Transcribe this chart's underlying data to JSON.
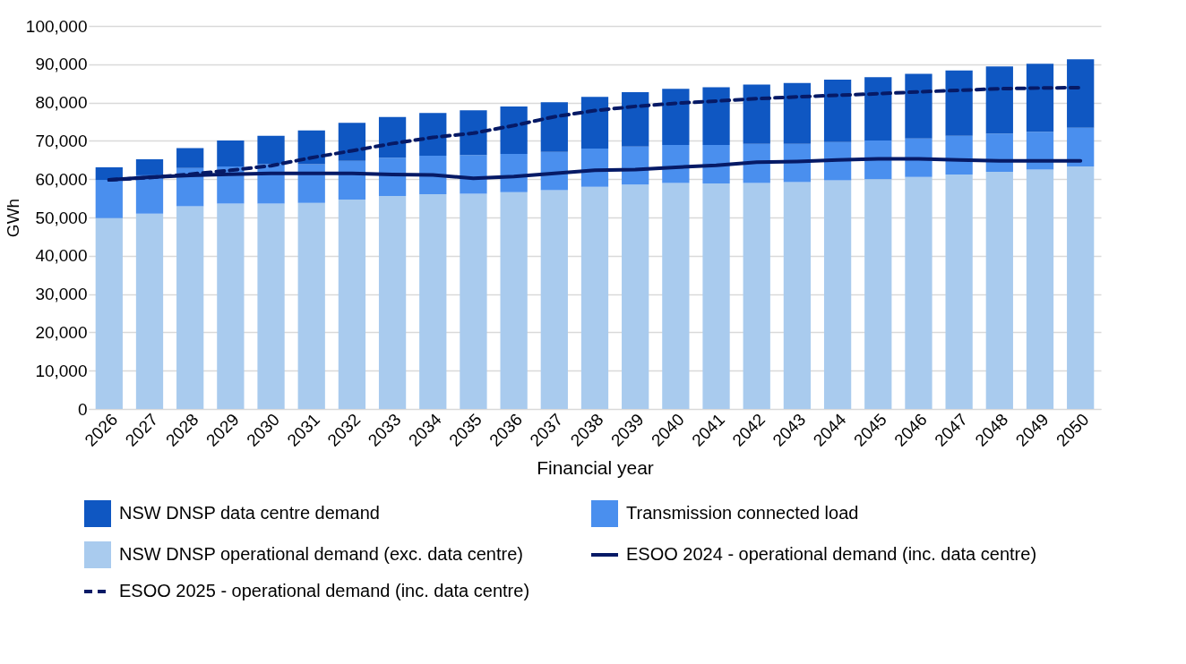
{
  "chart_data": {
    "type": "bar",
    "stacked": true,
    "xlabel": "Financial year",
    "ylabel": "GWh",
    "categories": [
      "2026",
      "2027",
      "2028",
      "2029",
      "2030",
      "2031",
      "2032",
      "2033",
      "2034",
      "2035",
      "2036",
      "2037",
      "2038",
      "2039",
      "2040",
      "2041",
      "2042",
      "2043",
      "2044",
      "2045",
      "2046",
      "2047",
      "2048",
      "2049",
      "2050"
    ],
    "series": [
      {
        "name": "NSW DNSP operational demand (exc. data centre)",
        "color": "#a9cbee",
        "values": [
          49800,
          51000,
          52900,
          53600,
          53600,
          53800,
          54700,
          55600,
          56100,
          56200,
          56600,
          57100,
          58000,
          58600,
          59000,
          58900,
          59000,
          59200,
          59700,
          60000,
          60600,
          61200,
          61900,
          62500,
          63300
        ]
      },
      {
        "name": "Transmission connected load",
        "color": "#4a8fee",
        "values": [
          10000,
          10000,
          10000,
          9700,
          10300,
          10100,
          10100,
          10000,
          10000,
          10100,
          10000,
          10000,
          10000,
          9900,
          9900,
          10000,
          10200,
          10000,
          10000,
          10100,
          10000,
          10100,
          10000,
          9900,
          10100
        ]
      },
      {
        "name": "NSW DNSP data centre demand",
        "color": "#0f57c2",
        "values": [
          3300,
          4200,
          5200,
          6800,
          7400,
          8800,
          9900,
          10600,
          11200,
          11700,
          12400,
          13000,
          13500,
          14200,
          14700,
          15100,
          15500,
          15900,
          16300,
          16500,
          16900,
          17100,
          17500,
          17700,
          17900
        ]
      },
      {
        "name": "ESOO 2024 - operational demand (inc. data centre)",
        "type": "line",
        "color": "#061a66",
        "line_style": "solid",
        "values": [
          59800,
          60500,
          61000,
          61300,
          61500,
          61500,
          61500,
          61200,
          61100,
          60200,
          60700,
          61500,
          62300,
          62500,
          63100,
          63600,
          64400,
          64600,
          65000,
          65300,
          65300,
          65000,
          64800,
          64800,
          64800
        ]
      },
      {
        "name": "ESOO 2025 - operational demand (inc. data centre)",
        "type": "line",
        "color": "#061a66",
        "line_style": "dashed",
        "values": [
          59800,
          60400,
          61300,
          62300,
          63500,
          65600,
          67400,
          69300,
          70900,
          72000,
          74000,
          76300,
          77900,
          79000,
          79800,
          80400,
          81000,
          81500,
          81900,
          82300,
          82800,
          83200,
          83600,
          83800,
          83900
        ]
      }
    ],
    "ylim": [
      0,
      100000
    ],
    "yticks": [
      0,
      {
        "value": 10000,
        "label": "10,000"
      },
      {
        "value": 20000,
        "label": "20,000"
      },
      {
        "value": 30000,
        "label": "30,000"
      },
      {
        "value": 40000,
        "label": "40,000"
      },
      {
        "value": 50000,
        "label": "50,000"
      },
      {
        "value": 60000,
        "label": "60,000"
      },
      {
        "value": 70000,
        "label": "70,000"
      },
      {
        "value": 80000,
        "label": "80,000"
      },
      {
        "value": 90000,
        "label": "90,000"
      },
      {
        "value": 100000,
        "label": "100,000"
      }
    ],
    "grid": "y",
    "legend": "bottom",
    "marker": "none"
  }
}
